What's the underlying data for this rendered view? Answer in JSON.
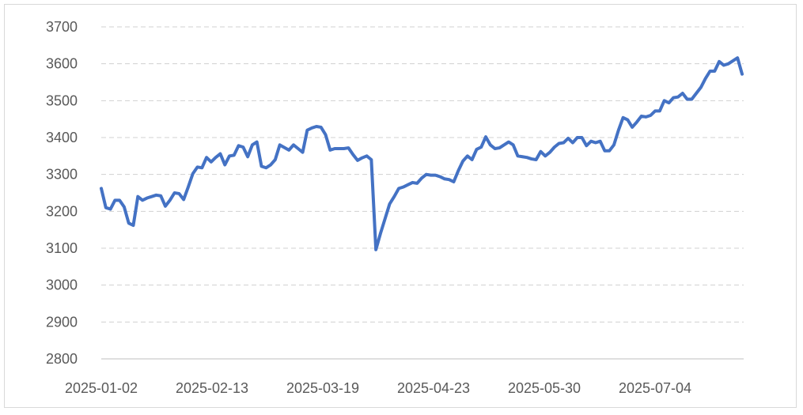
{
  "chart_data": {
    "type": "line",
    "title": "",
    "xlabel": "",
    "ylabel": "",
    "ylim": [
      2800,
      3700
    ],
    "yticks": [
      2800,
      2900,
      3000,
      3100,
      3200,
      3300,
      3400,
      3500,
      3600,
      3700
    ],
    "xtick_labels": [
      "2025-01-02",
      "2025-02-13",
      "2025-03-19",
      "2025-04-23",
      "2025-05-30",
      "2025-07-04"
    ],
    "grid": true,
    "legend": "none",
    "series": [
      {
        "color": "#4472c4",
        "values": [
          3262,
          3210,
          3206,
          3230,
          3230,
          3212,
          3168,
          3162,
          3240,
          3230,
          3236,
          3240,
          3244,
          3242,
          3214,
          3230,
          3250,
          3248,
          3232,
          3266,
          3302,
          3320,
          3318,
          3346,
          3334,
          3346,
          3356,
          3326,
          3350,
          3352,
          3378,
          3374,
          3348,
          3380,
          3388,
          3322,
          3318,
          3326,
          3340,
          3380,
          3373,
          3366,
          3380,
          3370,
          3360,
          3420,
          3426,
          3430,
          3428,
          3408,
          3366,
          3370,
          3370,
          3370,
          3372,
          3354,
          3338,
          3345,
          3350,
          3340,
          3096,
          3140,
          3180,
          3220,
          3240,
          3262,
          3266,
          3272,
          3278,
          3276,
          3290,
          3300,
          3298,
          3298,
          3294,
          3288,
          3286,
          3280,
          3310,
          3336,
          3350,
          3340,
          3368,
          3374,
          3402,
          3380,
          3370,
          3372,
          3380,
          3388,
          3380,
          3350,
          3348,
          3346,
          3342,
          3340,
          3362,
          3350,
          3360,
          3374,
          3384,
          3386,
          3398,
          3386,
          3400,
          3400,
          3378,
          3390,
          3386,
          3390,
          3364,
          3364,
          3380,
          3420,
          3454,
          3448,
          3428,
          3442,
          3458,
          3456,
          3460,
          3472,
          3472,
          3500,
          3494,
          3508,
          3510,
          3520,
          3504,
          3504,
          3520,
          3536,
          3560,
          3580,
          3580,
          3606,
          3596,
          3600,
          3608,
          3616,
          3572
        ]
      }
    ]
  }
}
